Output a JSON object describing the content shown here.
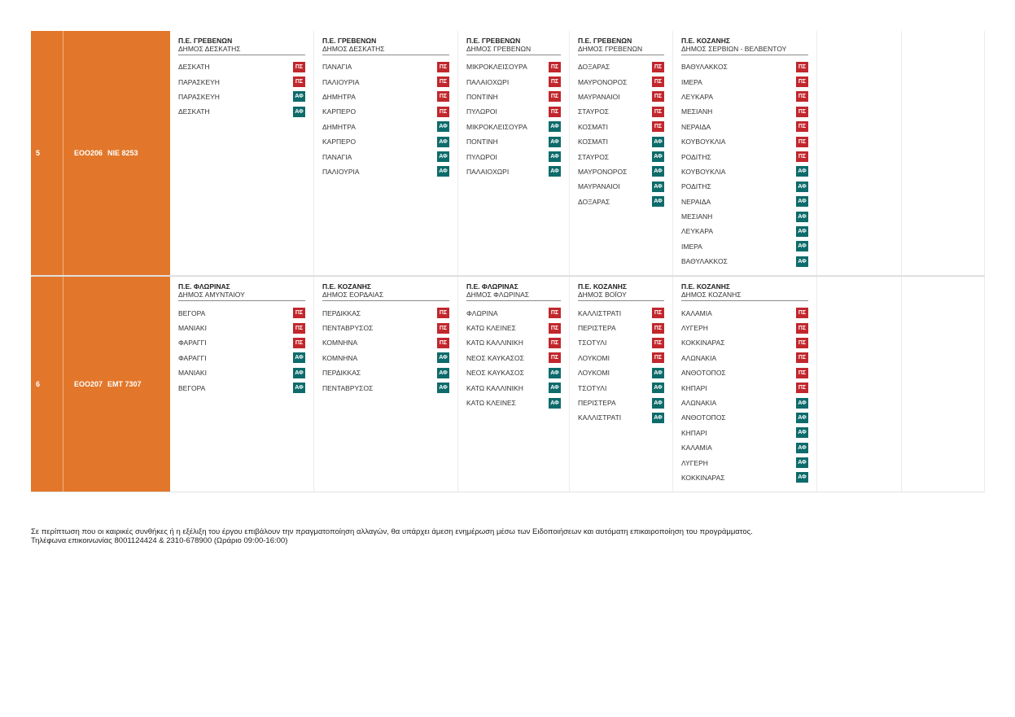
{
  "colors": {
    "vehicle_bg": "#e2772b",
    "badge_dep": "#c1272d",
    "badge_arr": "#0e6b6b"
  },
  "rows": [
    {
      "num": "5",
      "vehicle": "ΕΟΟ206",
      "plate": "ΝΙΕ 8253",
      "areas": [
        {
          "pe": "Π.Ε. ΓΡΕΒΕΝΩΝ",
          "dimos": "ΔΗΜΟΣ ΔΕΣΚΑΤΗΣ",
          "stops": [
            {
              "name": "ΔΕΣΚΑΤΗ",
              "badge": "ΠΣ",
              "type": "dep"
            },
            {
              "name": "ΠΑΡΑΣΚΕΥΗ",
              "badge": "ΠΣ",
              "type": "dep"
            },
            {
              "name": "ΠΑΡΑΣΚΕΥΗ",
              "badge": "ΑΦ",
              "type": "arr"
            },
            {
              "name": "ΔΕΣΚΑΤΗ",
              "badge": "ΑΦ",
              "type": "arr"
            }
          ]
        },
        {
          "pe": "Π.Ε. ΓΡΕΒΕΝΩΝ",
          "dimos": "ΔΗΜΟΣ ΔΕΣΚΑΤΗΣ",
          "stops": [
            {
              "name": "ΠΑΝΑΓΙΑ",
              "badge": "ΠΣ",
              "type": "dep"
            },
            {
              "name": "ΠΑΛΙΟΥΡΙΑ",
              "badge": "ΠΣ",
              "type": "dep"
            },
            {
              "name": "ΔΗΜΗΤΡΑ",
              "badge": "ΠΣ",
              "type": "dep"
            },
            {
              "name": "ΚΑΡΠΕΡΟ",
              "badge": "ΠΣ",
              "type": "dep"
            },
            {
              "name": "ΔΗΜΗΤΡΑ",
              "badge": "ΑΦ",
              "type": "arr"
            },
            {
              "name": "ΚΑΡΠΕΡΟ",
              "badge": "ΑΦ",
              "type": "arr"
            },
            {
              "name": "ΠΑΝΑΓΙΑ",
              "badge": "ΑΦ",
              "type": "arr"
            },
            {
              "name": "ΠΑΛΙΟΥΡΙΑ",
              "badge": "ΑΦ",
              "type": "arr"
            }
          ]
        },
        {
          "pe": "Π.Ε. ΓΡΕΒΕΝΩΝ",
          "dimos": "ΔΗΜΟΣ ΓΡΕΒΕΝΩΝ",
          "stops": [
            {
              "name": "ΜΙΚΡΟΚΛΕΙΣΟΥΡΑ",
              "badge": "ΠΣ",
              "type": "dep"
            },
            {
              "name": "ΠΑΛΑΙΟΧΩΡΙ",
              "badge": "ΠΣ",
              "type": "dep"
            },
            {
              "name": "ΠΟΝΤΙΝΗ",
              "badge": "ΠΣ",
              "type": "dep"
            },
            {
              "name": "ΠΥΛΩΡΟΙ",
              "badge": "ΠΣ",
              "type": "dep"
            },
            {
              "name": "ΜΙΚΡΟΚΛΕΙΣΟΥΡΑ",
              "badge": "ΑΦ",
              "type": "arr"
            },
            {
              "name": "ΠΟΝΤΙΝΗ",
              "badge": "ΑΦ",
              "type": "arr"
            },
            {
              "name": "ΠΥΛΩΡΟΙ",
              "badge": "ΑΦ",
              "type": "arr"
            },
            {
              "name": "ΠΑΛΑΙΟΧΩΡΙ",
              "badge": "ΑΦ",
              "type": "arr"
            }
          ]
        },
        {
          "pe": "Π.Ε. ΓΡΕΒΕΝΩΝ",
          "dimos": "ΔΗΜΟΣ ΓΡΕΒΕΝΩΝ",
          "stops": [
            {
              "name": "ΔΟΞΑΡΑΣ",
              "badge": "ΠΣ",
              "type": "dep"
            },
            {
              "name": "ΜΑΥΡΟΝΟΡΟΣ",
              "badge": "ΠΣ",
              "type": "dep"
            },
            {
              "name": "ΜΑΥΡΑΝΑΙΟΙ",
              "badge": "ΠΣ",
              "type": "dep"
            },
            {
              "name": "ΣΤΑΥΡΟΣ",
              "badge": "ΠΣ",
              "type": "dep"
            },
            {
              "name": "ΚΟΣΜΑΤΙ",
              "badge": "ΠΣ",
              "type": "dep"
            },
            {
              "name": "ΚΟΣΜΑΤΙ",
              "badge": "ΑΦ",
              "type": "arr"
            },
            {
              "name": "ΣΤΑΥΡΟΣ",
              "badge": "ΑΦ",
              "type": "arr"
            },
            {
              "name": "ΜΑΥΡΟΝΟΡΟΣ",
              "badge": "ΑΦ",
              "type": "arr"
            },
            {
              "name": "ΜΑΥΡΑΝΑΙΟΙ",
              "badge": "ΑΦ",
              "type": "arr"
            },
            {
              "name": "ΔΟΞΑΡΑΣ",
              "badge": "ΑΦ",
              "type": "arr"
            }
          ]
        },
        {
          "pe": "Π.Ε. ΚΟΖΑΝΗΣ",
          "dimos": "ΔΗΜΟΣ ΣΕΡΒΙΩΝ - ΒΕΛΒΕΝΤΟΥ",
          "stops": [
            {
              "name": "ΒΑΘΥΛΑΚΚΟΣ",
              "badge": "ΠΣ",
              "type": "dep"
            },
            {
              "name": "ΙΜΕΡΑ",
              "badge": "ΠΣ",
              "type": "dep"
            },
            {
              "name": "ΛΕΥΚΑΡΑ",
              "badge": "ΠΣ",
              "type": "dep"
            },
            {
              "name": "ΜΕΣΙΑΝΗ",
              "badge": "ΠΣ",
              "type": "dep"
            },
            {
              "name": "ΝΕΡΑΙΔΑ",
              "badge": "ΠΣ",
              "type": "dep"
            },
            {
              "name": "ΚΟΥΒΟΥΚΛΙΑ",
              "badge": "ΠΣ",
              "type": "dep"
            },
            {
              "name": "ΡΟΔΙΤΗΣ",
              "badge": "ΠΣ",
              "type": "dep"
            },
            {
              "name": "ΚΟΥΒΟΥΚΛΙΑ",
              "badge": "ΑΦ",
              "type": "arr"
            },
            {
              "name": "ΡΟΔΙΤΗΣ",
              "badge": "ΑΦ",
              "type": "arr"
            },
            {
              "name": "ΝΕΡΑΙΔΑ",
              "badge": "ΑΦ",
              "type": "arr"
            },
            {
              "name": "ΜΕΣΙΑΝΗ",
              "badge": "ΑΦ",
              "type": "arr"
            },
            {
              "name": "ΛΕΥΚΑΡΑ",
              "badge": "ΑΦ",
              "type": "arr"
            },
            {
              "name": "ΙΜΕΡΑ",
              "badge": "ΑΦ",
              "type": "arr"
            },
            {
              "name": "ΒΑΘΥΛΑΚΚΟΣ",
              "badge": "ΑΦ",
              "type": "arr"
            }
          ]
        }
      ]
    },
    {
      "num": "6",
      "vehicle": "ΕΟΟ207",
      "plate": "ΕΜΤ 7307",
      "areas": [
        {
          "pe": "Π.Ε. ΦΛΩΡΙΝΑΣ",
          "dimos": "ΔΗΜΟΣ ΑΜΥΝΤΑΙΟΥ",
          "stops": [
            {
              "name": "ΒΕΓΟΡΑ",
              "badge": "ΠΣ",
              "type": "dep"
            },
            {
              "name": "ΜΑΝΙΑΚΙ",
              "badge": "ΠΣ",
              "type": "dep"
            },
            {
              "name": "ΦΑΡΑΓΓΙ",
              "badge": "ΠΣ",
              "type": "dep"
            },
            {
              "name": "ΦΑΡΑΓΓΙ",
              "badge": "ΑΦ",
              "type": "arr"
            },
            {
              "name": "ΜΑΝΙΑΚΙ",
              "badge": "ΑΦ",
              "type": "arr"
            },
            {
              "name": "ΒΕΓΟΡΑ",
              "badge": "ΑΦ",
              "type": "arr"
            }
          ]
        },
        {
          "pe": "Π.Ε. ΚΟΖΑΝΗΣ",
          "dimos": "ΔΗΜΟΣ ΕΟΡΔΑΙΑΣ",
          "stops": [
            {
              "name": "ΠΕΡΔΙΚΚΑΣ",
              "badge": "ΠΣ",
              "type": "dep"
            },
            {
              "name": "ΠΕΝΤΑΒΡΥΣΟΣ",
              "badge": "ΠΣ",
              "type": "dep"
            },
            {
              "name": "ΚΟΜΝΗΝΑ",
              "badge": "ΠΣ",
              "type": "dep"
            },
            {
              "name": "ΚΟΜΝΗΝΑ",
              "badge": "ΑΦ",
              "type": "arr"
            },
            {
              "name": "ΠΕΡΔΙΚΚΑΣ",
              "badge": "ΑΦ",
              "type": "arr"
            },
            {
              "name": "ΠΕΝΤΑΒΡΥΣΟΣ",
              "badge": "ΑΦ",
              "type": "arr"
            }
          ]
        },
        {
          "pe": "Π.Ε. ΦΛΩΡΙΝΑΣ",
          "dimos": "ΔΗΜΟΣ ΦΛΩΡΙΝΑΣ",
          "stops": [
            {
              "name": "ΦΛΩΡΙΝΑ",
              "badge": "ΠΣ",
              "type": "dep"
            },
            {
              "name": "ΚΑΤΩ ΚΛΕΙΝΕΣ",
              "badge": "ΠΣ",
              "type": "dep"
            },
            {
              "name": "ΚΑΤΩ ΚΑΛΛΙΝΙΚΗ",
              "badge": "ΠΣ",
              "type": "dep"
            },
            {
              "name": "ΝΕΟΣ ΚΑΥΚΑΣΟΣ",
              "badge": "ΠΣ",
              "type": "dep"
            },
            {
              "name": "ΝΕΟΣ ΚΑΥΚΑΣΟΣ",
              "badge": "ΑΦ",
              "type": "arr"
            },
            {
              "name": "ΚΑΤΩ ΚΑΛΛΙΝΙΚΗ",
              "badge": "ΑΦ",
              "type": "arr"
            },
            {
              "name": "ΚΑΤΩ ΚΛΕΙΝΕΣ",
              "badge": "ΑΦ",
              "type": "arr"
            }
          ]
        },
        {
          "pe": "Π.Ε. ΚΟΖΑΝΗΣ",
          "dimos": "ΔΗΜΟΣ ΒΟΪΟΥ",
          "stops": [
            {
              "name": "ΚΑΛΛΙΣΤΡΑΤΙ",
              "badge": "ΠΣ",
              "type": "dep"
            },
            {
              "name": "ΠΕΡΙΣΤΕΡΑ",
              "badge": "ΠΣ",
              "type": "dep"
            },
            {
              "name": "ΤΣΟΤΥΛΙ",
              "badge": "ΠΣ",
              "type": "dep"
            },
            {
              "name": "ΛΟΥΚΟΜΙ",
              "badge": "ΠΣ",
              "type": "dep"
            },
            {
              "name": "ΛΟΥΚΟΜΙ",
              "badge": "ΑΦ",
              "type": "arr"
            },
            {
              "name": "ΤΣΟΤΥΛΙ",
              "badge": "ΑΦ",
              "type": "arr"
            },
            {
              "name": "ΠΕΡΙΣΤΕΡΑ",
              "badge": "ΑΦ",
              "type": "arr"
            },
            {
              "name": "ΚΑΛΛΙΣΤΡΑΤΙ",
              "badge": "ΑΦ",
              "type": "arr"
            }
          ]
        },
        {
          "pe": "Π.Ε. ΚΟΖΑΝΗΣ",
          "dimos": "ΔΗΜΟΣ ΚΟΖΑΝΗΣ",
          "stops": [
            {
              "name": "ΚΑΛΑΜΙΑ",
              "badge": "ΠΣ",
              "type": "dep"
            },
            {
              "name": "ΛΥΓΕΡΗ",
              "badge": "ΠΣ",
              "type": "dep"
            },
            {
              "name": "ΚΟΚΚΙΝΑΡΑΣ",
              "badge": "ΠΣ",
              "type": "dep"
            },
            {
              "name": "ΑΛΩΝΑΚΙΑ",
              "badge": "ΠΣ",
              "type": "dep"
            },
            {
              "name": "ΑΝΘΟΤΟΠΟΣ",
              "badge": "ΠΣ",
              "type": "dep"
            },
            {
              "name": "ΚΗΠΑΡΙ",
              "badge": "ΠΣ",
              "type": "dep"
            },
            {
              "name": "ΑΛΩΝΑΚΙΑ",
              "badge": "ΑΦ",
              "type": "arr"
            },
            {
              "name": "ΑΝΘΟΤΟΠΟΣ",
              "badge": "ΑΦ",
              "type": "arr"
            },
            {
              "name": "ΚΗΠΑΡΙ",
              "badge": "ΑΦ",
              "type": "arr"
            },
            {
              "name": "ΚΑΛΑΜΙΑ",
              "badge": "ΑΦ",
              "type": "arr"
            },
            {
              "name": "ΛΥΓΕΡΗ",
              "badge": "ΑΦ",
              "type": "arr"
            },
            {
              "name": "ΚΟΚΚΙΝΑΡΑΣ",
              "badge": "ΑΦ",
              "type": "arr"
            }
          ]
        }
      ]
    }
  ],
  "notice": {
    "line1": "Σε περίπτωση που οι καιρικές συνθήκες ή η εξέλιξη του έργου επιβάλουν την πραγματοποίηση αλλαγών, θα υπάρχει άμεση ενημέρωση μέσω των Ειδοποιήσεων και αυτόματη επικαιροποίηση του προγράμματος.",
    "line2": "Τηλέφωνα επικοινωνίας 8001124424 & 2310-678900 (Ωράριο 09:00-16:00)"
  }
}
